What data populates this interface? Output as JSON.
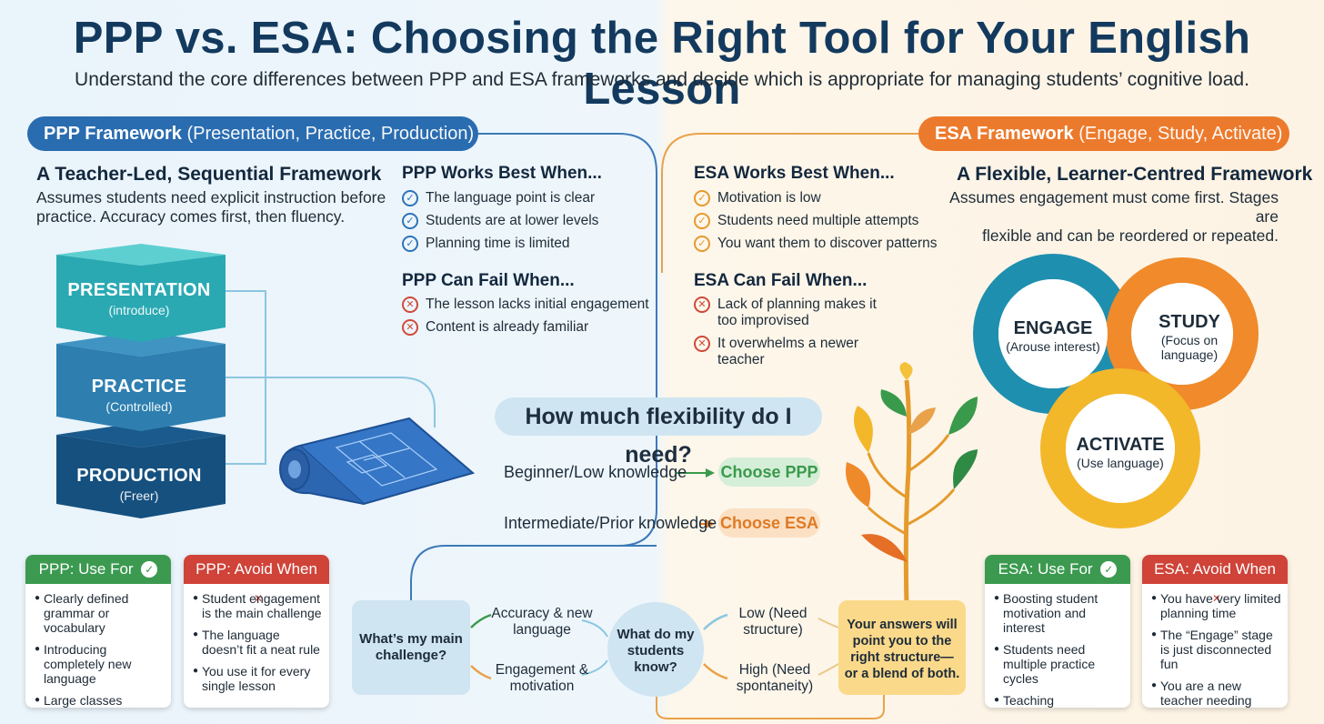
{
  "title": "PPP vs. ESA: Choosing the Right Tool for Your English Lesson",
  "subtitle": "Understand the core differences between PPP and ESA frameworks and decide which is appropriate for managing students’ cognitive load.",
  "ppp": {
    "pill_bold": "PPP Framework",
    "pill_light": "(Presentation, Practice, Production)",
    "heading": "A Teacher-Led, Sequential Framework",
    "desc_lines": [
      "Assumes students need explicit instruction before",
      "practice. Accuracy comes first, then fluency."
    ],
    "stack": [
      {
        "name": "PRESENTATION",
        "sub": "(introduce)"
      },
      {
        "name": "PRACTICE",
        "sub": "(Controlled)"
      },
      {
        "name": "PRODUCTION",
        "sub": "(Freer)"
      }
    ],
    "best_title": "PPP Works Best When...",
    "best": [
      "The language point is clear",
      "Students are at lower levels",
      "Planning time is limited"
    ],
    "fail_title": "PPP Can Fail When...",
    "fail": [
      "The lesson lacks initial engagement",
      "Content is already familiar"
    ],
    "use_title": "PPP: Use For",
    "use": [
      "Clearly defined grammar or vocabulary",
      "Introducing completely new language",
      "Large classes needing controlled practice"
    ],
    "avoid_title": "PPP: Avoid When",
    "avoid": [
      "Student engagement is the main challenge",
      "The language doesn’t fit a neat rule",
      "You use it for every single lesson"
    ]
  },
  "esa": {
    "pill_bold": "ESA Framework",
    "pill_light": "(Engage, Study, Activate)",
    "heading": "A Flexible, Learner-Centred Framework",
    "desc_lines": [
      "Assumes engagement must come first. Stages are",
      "flexible and can be reordered or repeated."
    ],
    "best_title": "ESA Works Best When...",
    "best": [
      "Motivation is low",
      "Students need multiple attempts",
      "You want them to discover patterns"
    ],
    "fail_title": "ESA Can Fail When...",
    "fail": [
      "Lack of planning makes it too improvised",
      "It overwhelms a newer teacher"
    ],
    "cycle": [
      {
        "name": "ENGAGE",
        "sub": "(Arouse interest)"
      },
      {
        "name": "STUDY",
        "sub": "(Focus on language)"
      },
      {
        "name": "ACTIVATE",
        "sub": "(Use language)"
      }
    ],
    "use_title": "ESA: Use For",
    "use": [
      "Boosting student motivation and interest",
      "Students need multiple practice cycles",
      "Teaching intermediate or higher levels"
    ],
    "avoid_title": "ESA: Avoid When",
    "avoid": [
      "You have very limited planning time",
      "The “Engage” stage is just disconnected fun",
      "You are a new teacher needing more structure"
    ]
  },
  "decision": {
    "question": "How much flexibility do I need?",
    "row1_text": "Beginner/Low knowledge",
    "row1_choice": "Choose PPP",
    "row2_text": "Intermediate/Prior knowledge",
    "row2_choice": "Choose ESA"
  },
  "flow": {
    "challenge": "What’s my main challenge?",
    "opt_accuracy": "Accuracy & new language",
    "opt_engagement": "Engagement & motivation",
    "know": "What do my students know?",
    "opt_low": "Low (Need structure)",
    "opt_high": "High (Need spontaneity)",
    "result": "Your answers will point you to the right structure—or a blend of both."
  },
  "colors": {
    "ppp_blue": "#2a6cb0",
    "esa_orange": "#ec7a2c",
    "use_green": "#3b9a50",
    "avoid_red": "#cf4338",
    "engage_teal": "#1f8fb0",
    "study_orange": "#f08a2a",
    "activate_yellow": "#f3b72a"
  },
  "icons": [
    "check-circle-icon",
    "x-circle-icon",
    "blueprint-icon",
    "plant-icon",
    "arrow-right-icon"
  ]
}
